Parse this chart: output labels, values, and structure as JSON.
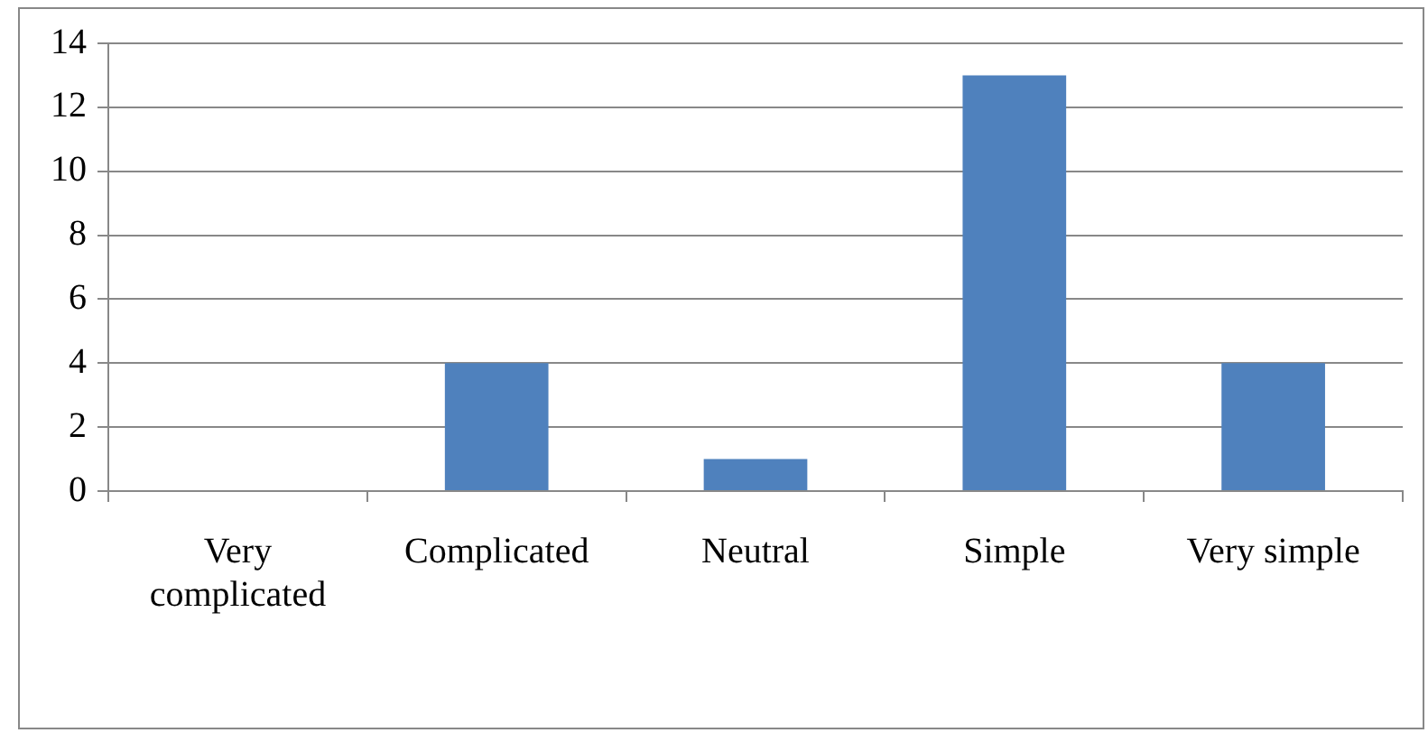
{
  "chart_data": {
    "type": "bar",
    "categories": [
      "Very complicated",
      "Complicated",
      "Neutral",
      "Simple",
      "Very simple"
    ],
    "values": [
      0,
      4,
      1,
      13,
      4
    ],
    "color": "#4f81bd",
    "ylim": [
      0,
      14
    ],
    "yticks": [
      0,
      2,
      4,
      6,
      8,
      10,
      12,
      14
    ],
    "grid": "y",
    "legend": false
  }
}
